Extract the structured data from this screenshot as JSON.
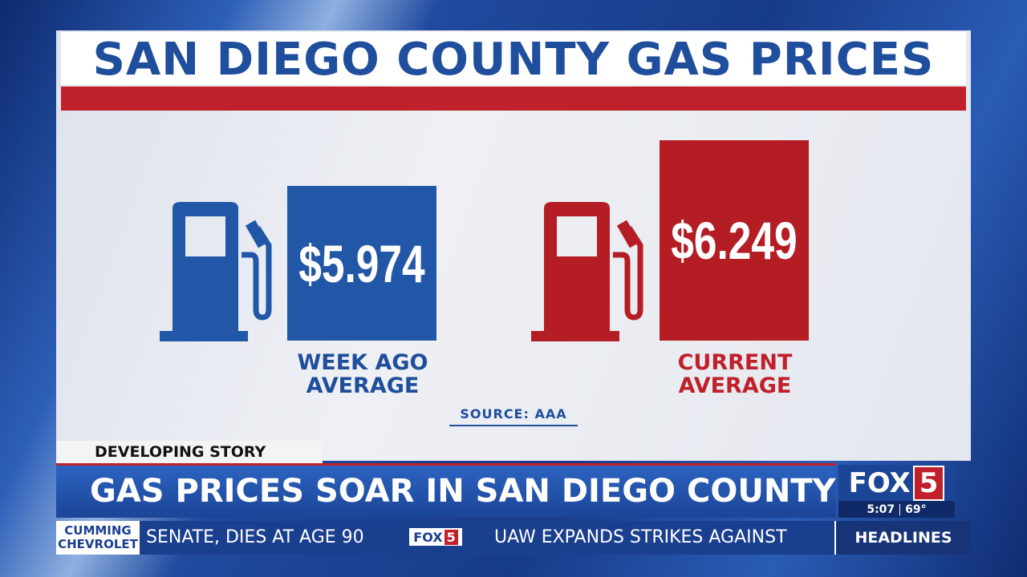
{
  "graphic": {
    "title": "SAN DIEGO COUNTY GAS PRICES",
    "items": [
      {
        "price": "$5.974",
        "label_lines": [
          "WEEK AGO",
          "AVERAGE"
        ]
      },
      {
        "price": "$6.249",
        "label_lines": [
          "CURRENT",
          "AVERAGE"
        ]
      }
    ],
    "source": "SOURCE: AAA"
  },
  "lower_third": {
    "tag": "DEVELOPING STORY",
    "headline": "GAS PRICES SOAR IN SAN DIEGO COUNTY",
    "logo": {
      "name": "FOX",
      "number": "5"
    },
    "time": "5:07",
    "temperature": "69°"
  },
  "ticker": {
    "sponsor_lines": [
      "CUMMING",
      "CHEVROLET"
    ],
    "items": [
      "SENATE, DIES AT AGE 90",
      "UAW EXPANDS STRIKES AGAINST"
    ],
    "logo": {
      "name": "FOX",
      "number": "5"
    },
    "section": "HEADLINES"
  }
}
